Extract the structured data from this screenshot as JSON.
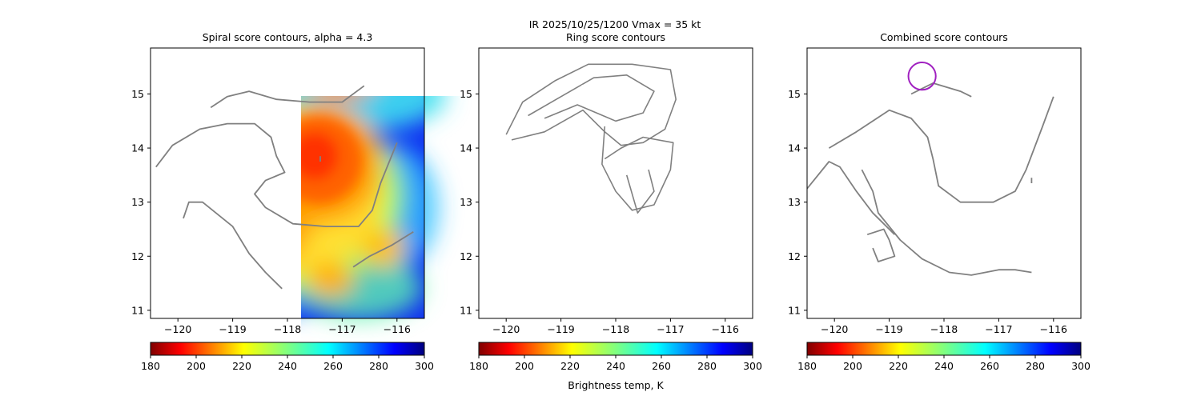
{
  "figure": {
    "suptitle_line1": "IR  2025/10/25/1200    Vmax = 35 kt",
    "colorbar_label": "Brightness temp, K"
  },
  "chart_data": [
    {
      "type": "heatmap",
      "title": "Spiral score contours, alpha =  4.3",
      "xlim": [
        -120.5,
        -115.5
      ],
      "ylim": [
        10.85,
        15.85
      ],
      "xticks": [
        -120,
        -119,
        -118,
        -117,
        -116
      ],
      "xtick_labels": [
        "−120",
        "−119",
        "−118",
        "−117",
        "−116"
      ],
      "yticks": [
        11,
        12,
        13,
        14,
        15
      ],
      "ytick_labels": [
        "11",
        "12",
        "13",
        "14",
        "15"
      ],
      "colorbar": {
        "min": 180,
        "max": 300,
        "ticks": [
          "180",
          "200",
          "220",
          "240",
          "260",
          "280",
          "300"
        ]
      },
      "center_marker": {
        "lon": -118.0,
        "lat": 13.37,
        "symbol": "+"
      },
      "contours": [
        [
          [
            -120.4,
            13.65
          ],
          [
            -120.1,
            14.05
          ],
          [
            -119.6,
            14.35
          ],
          [
            -119.1,
            14.45
          ],
          [
            -118.6,
            14.45
          ],
          [
            -118.3,
            14.2
          ],
          [
            -118.2,
            13.85
          ],
          [
            -118.05,
            13.55
          ],
          [
            -118.4,
            13.4
          ],
          [
            -118.6,
            13.15
          ],
          [
            -118.4,
            12.9
          ],
          [
            -117.9,
            12.6
          ],
          [
            -117.3,
            12.55
          ],
          [
            -116.7,
            12.55
          ],
          [
            -116.45,
            12.85
          ],
          [
            -116.3,
            13.35
          ],
          [
            -116.0,
            14.1
          ]
        ],
        [
          [
            -119.9,
            12.7
          ],
          [
            -119.8,
            13.0
          ],
          [
            -119.55,
            13.0
          ],
          [
            -119.0,
            12.55
          ],
          [
            -118.7,
            12.05
          ],
          [
            -118.4,
            11.7
          ],
          [
            -118.1,
            11.4
          ]
        ],
        [
          [
            -119.4,
            14.75
          ],
          [
            -119.1,
            14.95
          ],
          [
            -118.7,
            15.05
          ],
          [
            -118.2,
            14.9
          ],
          [
            -117.6,
            14.85
          ],
          [
            -117.0,
            14.85
          ],
          [
            -116.6,
            15.15
          ]
        ],
        [
          [
            -117.4,
            13.85
          ],
          [
            -117.4,
            13.75
          ]
        ],
        [
          [
            -116.8,
            11.8
          ],
          [
            -116.5,
            12.0
          ],
          [
            -116.1,
            12.2
          ],
          [
            -115.7,
            12.45
          ]
        ]
      ]
    },
    {
      "type": "heatmap",
      "title": "Ring score contours",
      "xlim": [
        -120.5,
        -115.5
      ],
      "ylim": [
        10.85,
        15.85
      ],
      "xticks": [
        -120,
        -119,
        -118,
        -117,
        -116
      ],
      "xtick_labels": [
        "−120",
        "−119",
        "−118",
        "−117",
        "−116"
      ],
      "yticks": [
        11,
        12,
        13,
        14,
        15
      ],
      "ytick_labels": [
        "11",
        "12",
        "13",
        "14",
        "15"
      ],
      "colorbar": {
        "min": 180,
        "max": 300,
        "ticks": [
          "180",
          "200",
          "220",
          "240",
          "260",
          "280",
          "300"
        ]
      },
      "best_center": {
        "lon": -118.55,
        "lat": 15.1,
        "symbol": "square"
      },
      "contours": [
        [
          [
            -120.0,
            14.25
          ],
          [
            -119.7,
            14.85
          ],
          [
            -119.1,
            15.25
          ],
          [
            -118.5,
            15.55
          ],
          [
            -117.7,
            15.55
          ],
          [
            -117.0,
            15.45
          ],
          [
            -116.9,
            14.9
          ],
          [
            -117.1,
            14.35
          ],
          [
            -117.5,
            14.1
          ],
          [
            -117.9,
            14.05
          ],
          [
            -118.2,
            14.3
          ],
          [
            -118.6,
            14.7
          ],
          [
            -119.3,
            14.3
          ],
          [
            -119.9,
            14.15
          ]
        ],
        [
          [
            -119.6,
            14.6
          ],
          [
            -119.0,
            14.95
          ],
          [
            -118.4,
            15.3
          ],
          [
            -117.8,
            15.35
          ],
          [
            -117.3,
            15.05
          ],
          [
            -117.5,
            14.65
          ],
          [
            -118.0,
            14.5
          ],
          [
            -118.7,
            14.8
          ],
          [
            -119.3,
            14.55
          ]
        ],
        [
          [
            -118.2,
            14.4
          ],
          [
            -118.25,
            13.7
          ],
          [
            -118.0,
            13.2
          ],
          [
            -117.7,
            12.85
          ],
          [
            -117.3,
            12.95
          ],
          [
            -117.0,
            13.6
          ],
          [
            -116.95,
            14.1
          ],
          [
            -117.5,
            14.2
          ],
          [
            -117.9,
            14.0
          ],
          [
            -118.2,
            13.8
          ]
        ],
        [
          [
            -117.8,
            13.5
          ],
          [
            -117.6,
            12.8
          ],
          [
            -117.3,
            13.2
          ],
          [
            -117.4,
            13.6
          ]
        ]
      ]
    },
    {
      "type": "heatmap",
      "title": "Combined score contours",
      "xlim": [
        -120.5,
        -115.5
      ],
      "ylim": [
        10.85,
        15.85
      ],
      "xticks": [
        -120,
        -119,
        -118,
        -117,
        -116
      ],
      "xtick_labels": [
        "−120",
        "−119",
        "−118",
        "−117",
        "−116"
      ],
      "yticks": [
        11,
        12,
        13,
        14,
        15
      ],
      "ytick_labels": [
        "11",
        "12",
        "13",
        "14",
        "15"
      ],
      "colorbar": {
        "min": 180,
        "max": 300,
        "ticks": [
          "180",
          "200",
          "220",
          "240",
          "260",
          "280",
          "300"
        ]
      },
      "center_marker": {
        "lon": -118.0,
        "lat": 13.37,
        "symbol": "+"
      },
      "best_center": {
        "lon": -118.4,
        "lat": 15.33,
        "symbol": "square",
        "ring_radius_deg": 0.25
      },
      "contours": [
        [
          [
            -119.5,
            13.6
          ],
          [
            -119.3,
            13.2
          ],
          [
            -119.2,
            12.8
          ],
          [
            -118.8,
            12.3
          ],
          [
            -118.4,
            11.95
          ],
          [
            -117.9,
            11.7
          ],
          [
            -117.5,
            11.65
          ],
          [
            -117.0,
            11.75
          ],
          [
            -116.7,
            11.75
          ],
          [
            -116.4,
            11.7
          ]
        ],
        [
          [
            -120.1,
            14.0
          ],
          [
            -119.6,
            14.3
          ],
          [
            -119.0,
            14.7
          ],
          [
            -118.6,
            14.55
          ],
          [
            -118.3,
            14.2
          ],
          [
            -118.2,
            13.8
          ],
          [
            -118.1,
            13.3
          ],
          [
            -117.7,
            13.0
          ],
          [
            -117.1,
            13.0
          ],
          [
            -116.7,
            13.2
          ],
          [
            -116.5,
            13.6
          ],
          [
            -116.2,
            14.4
          ],
          [
            -116.0,
            14.95
          ]
        ],
        [
          [
            -120.5,
            13.25
          ],
          [
            -120.1,
            13.75
          ],
          [
            -119.9,
            13.65
          ],
          [
            -119.6,
            13.2
          ],
          [
            -119.3,
            12.8
          ],
          [
            -118.9,
            12.4
          ]
        ],
        [
          [
            -119.4,
            12.4
          ],
          [
            -119.1,
            12.5
          ],
          [
            -119.0,
            12.3
          ],
          [
            -118.9,
            12.0
          ],
          [
            -119.2,
            11.9
          ],
          [
            -119.3,
            12.15
          ]
        ],
        [
          [
            -118.6,
            15.0
          ],
          [
            -118.2,
            15.2
          ],
          [
            -117.7,
            15.05
          ],
          [
            -117.5,
            14.95
          ]
        ],
        [
          [
            -116.4,
            13.45
          ],
          [
            -116.4,
            13.35
          ]
        ]
      ]
    }
  ]
}
